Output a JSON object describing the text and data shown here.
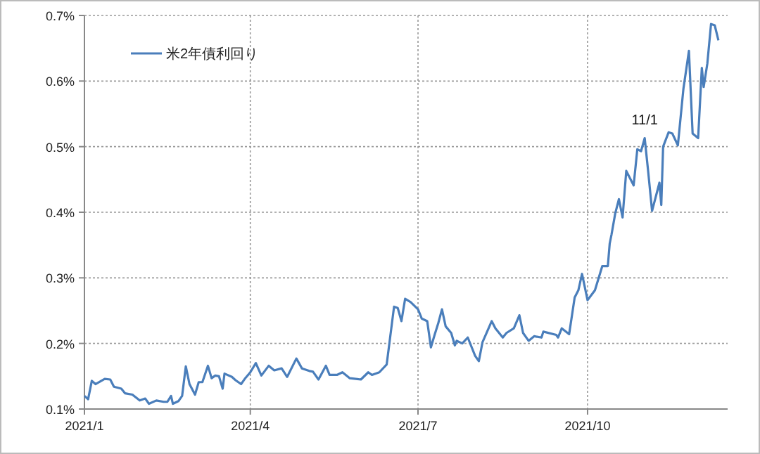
{
  "chart_data": {
    "type": "line",
    "grid": true,
    "legend": "top left",
    "line_style": "solid",
    "marker": "none",
    "xlim": [
      "2021-01-01",
      "2021-12-16"
    ],
    "xticks": [
      {
        "value": "2021-01-01",
        "label": "2021/1"
      },
      {
        "value": "2021-04-01",
        "label": "2021/4"
      },
      {
        "value": "2021-07-01",
        "label": "2021/7"
      },
      {
        "value": "2021-10-01",
        "label": "2021/10"
      }
    ],
    "ylim": [
      0.1,
      0.7
    ],
    "yticks": [
      {
        "value": 0.1,
        "label": "0.1%"
      },
      {
        "value": 0.2,
        "label": "0.2%"
      },
      {
        "value": 0.3,
        "label": "0.3%"
      },
      {
        "value": 0.4,
        "label": "0.4%"
      },
      {
        "value": 0.5,
        "label": "0.5%"
      },
      {
        "value": 0.6,
        "label": "0.6%"
      },
      {
        "value": 0.7,
        "label": "0.7%"
      }
    ],
    "annotations": [
      {
        "text": "11/1",
        "x": "2021-11-01",
        "y": 0.513
      }
    ],
    "x": [
      "2021-01-01",
      "2021-01-03",
      "2021-01-05",
      "2021-01-07",
      "2021-01-12",
      "2021-01-15",
      "2021-01-17",
      "2021-01-21",
      "2021-01-23",
      "2021-01-27",
      "2021-01-31",
      "2021-02-03",
      "2021-02-05",
      "2021-02-09",
      "2021-02-13",
      "2021-02-15",
      "2021-02-17",
      "2021-02-18",
      "2021-02-21",
      "2021-02-23",
      "2021-02-25",
      "2021-02-27",
      "2021-03-02",
      "2021-03-04",
      "2021-03-06",
      "2021-03-09",
      "2021-03-11",
      "2021-03-13",
      "2021-03-15",
      "2021-03-17",
      "2021-03-18",
      "2021-03-22",
      "2021-03-24",
      "2021-03-27",
      "2021-03-29",
      "2021-04-01",
      "2021-04-04",
      "2021-04-07",
      "2021-04-11",
      "2021-04-14",
      "2021-04-18",
      "2021-04-21",
      "2021-04-26",
      "2021-04-29",
      "2021-05-03",
      "2021-05-05",
      "2021-05-08",
      "2021-05-12",
      "2021-05-14",
      "2021-05-18",
      "2021-05-21",
      "2021-05-25",
      "2021-05-31",
      "2021-06-04",
      "2021-06-06",
      "2021-06-10",
      "2021-06-14",
      "2021-06-18",
      "2021-06-20",
      "2021-06-22",
      "2021-06-24",
      "2021-06-27",
      "2021-07-01",
      "2021-07-03",
      "2021-07-06",
      "2021-07-08",
      "2021-07-10",
      "2021-07-12",
      "2021-07-14",
      "2021-07-16",
      "2021-07-19",
      "2021-07-21",
      "2021-07-22",
      "2021-07-25",
      "2021-07-28",
      "2021-08-01",
      "2021-08-03",
      "2021-08-05",
      "2021-08-10",
      "2021-08-12",
      "2021-08-16",
      "2021-08-18",
      "2021-08-22",
      "2021-08-25",
      "2021-08-27",
      "2021-08-30",
      "2021-09-02",
      "2021-09-06",
      "2021-09-07",
      "2021-09-14",
      "2021-09-15",
      "2021-09-17",
      "2021-09-21",
      "2021-09-24",
      "2021-09-26",
      "2021-09-28",
      "2021-10-01",
      "2021-10-05",
      "2021-10-09",
      "2021-10-12",
      "2021-10-13",
      "2021-10-14",
      "2021-10-16",
      "2021-10-18",
      "2021-10-20",
      "2021-10-22",
      "2021-10-26",
      "2021-10-28",
      "2021-10-30",
      "2021-11-01",
      "2021-11-03",
      "2021-11-05",
      "2021-11-09",
      "2021-11-10",
      "2021-11-11",
      "2021-11-14",
      "2021-11-16",
      "2021-11-19",
      "2021-11-22",
      "2021-11-25",
      "2021-11-27",
      "2021-11-30",
      "2021-12-02",
      "2021-12-03",
      "2021-12-05",
      "2021-12-07",
      "2021-12-09",
      "2021-12-11"
    ],
    "series": [
      {
        "name": "米2年債利回り",
        "color": "#4a7ebb",
        "values": [
          0.12,
          0.115,
          0.143,
          0.138,
          0.146,
          0.145,
          0.134,
          0.131,
          0.124,
          0.122,
          0.113,
          0.116,
          0.108,
          0.113,
          0.111,
          0.111,
          0.12,
          0.108,
          0.112,
          0.12,
          0.165,
          0.138,
          0.122,
          0.141,
          0.141,
          0.166,
          0.147,
          0.151,
          0.15,
          0.131,
          0.154,
          0.149,
          0.144,
          0.138,
          0.146,
          0.156,
          0.17,
          0.151,
          0.166,
          0.159,
          0.162,
          0.149,
          0.177,
          0.162,
          0.158,
          0.157,
          0.145,
          0.166,
          0.152,
          0.152,
          0.156,
          0.147,
          0.145,
          0.156,
          0.152,
          0.156,
          0.168,
          0.256,
          0.254,
          0.234,
          0.268,
          0.263,
          0.252,
          0.238,
          0.234,
          0.194,
          0.213,
          0.231,
          0.252,
          0.226,
          0.216,
          0.197,
          0.204,
          0.2,
          0.209,
          0.181,
          0.173,
          0.202,
          0.234,
          0.223,
          0.209,
          0.216,
          0.223,
          0.243,
          0.216,
          0.204,
          0.211,
          0.209,
          0.218,
          0.213,
          0.209,
          0.223,
          0.214,
          0.27,
          0.281,
          0.306,
          0.266,
          0.281,
          0.318,
          0.318,
          0.352,
          0.366,
          0.398,
          0.42,
          0.392,
          0.463,
          0.441,
          0.496,
          0.493,
          0.513,
          0.459,
          0.402,
          0.445,
          0.411,
          0.5,
          0.522,
          0.52,
          0.502,
          0.588,
          0.646,
          0.52,
          0.513,
          0.62,
          0.591,
          0.627,
          0.687,
          0.685,
          0.662
        ]
      }
    ]
  }
}
